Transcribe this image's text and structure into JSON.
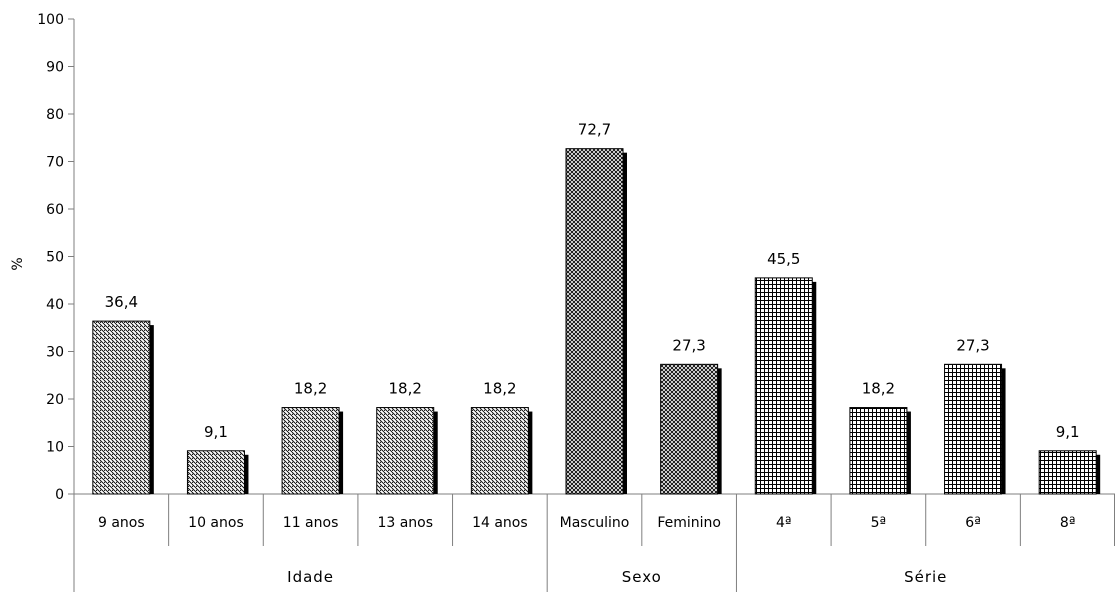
{
  "chart_data": {
    "type": "bar",
    "ylabel": "%",
    "ylim": [
      0,
      100
    ],
    "yticks": [
      0,
      10,
      20,
      30,
      40,
      50,
      60,
      70,
      80,
      90,
      100
    ],
    "grid": false,
    "categories": [
      "9 anos",
      "10 anos",
      "11 anos",
      "13 anos",
      "14 anos",
      "Masculino",
      "Feminino",
      "4ª",
      "5ª",
      "6ª",
      "8ª"
    ],
    "values": [
      36.4,
      9.1,
      18.2,
      18.2,
      18.2,
      72.7,
      27.3,
      45.5,
      18.2,
      27.3,
      9.1
    ],
    "data_labels": [
      "36,4",
      "9,1",
      "18,2",
      "18,2",
      "18,2",
      "72,7",
      "27,3",
      "45,5",
      "18,2",
      "27,3",
      "9,1"
    ],
    "groups": [
      {
        "name": "Idade",
        "start": 0,
        "end": 4,
        "pattern": "diagonal-hatch"
      },
      {
        "name": "Sexo",
        "start": 5,
        "end": 6,
        "pattern": "diamond-crosshatch"
      },
      {
        "name": "Série",
        "start": 7,
        "end": 10,
        "pattern": "square-grid"
      }
    ],
    "bar_fill": "#ffffff",
    "bar_stroke": "#000000",
    "shadow_color": "#000000"
  }
}
